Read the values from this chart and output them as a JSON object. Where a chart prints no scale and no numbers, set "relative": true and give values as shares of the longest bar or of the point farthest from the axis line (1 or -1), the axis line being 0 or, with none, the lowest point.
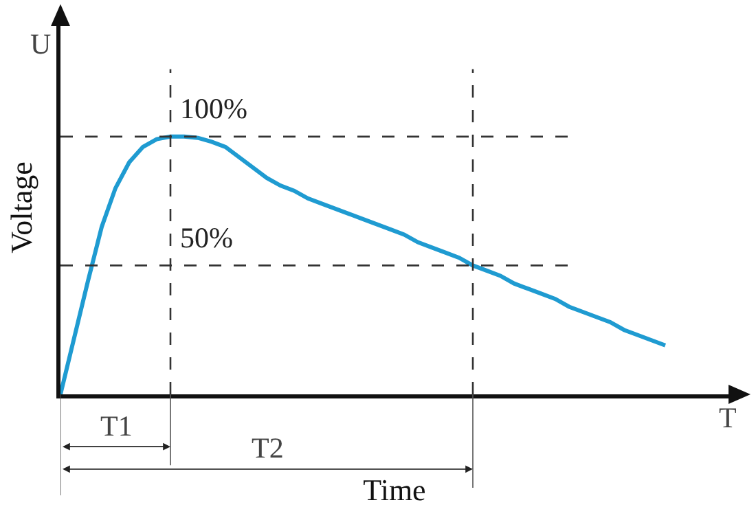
{
  "chart_data": {
    "type": "line",
    "relative": true,
    "xlabel": "Time",
    "ylabel": "Voltage",
    "categories": [
      null,
      null,
      null,
      null,
      null,
      null,
      null,
      null,
      null,
      null,
      null,
      null,
      null,
      null,
      null,
      null,
      null,
      null,
      null,
      null,
      null,
      null,
      null,
      null,
      null,
      null,
      null,
      null,
      null,
      null,
      null,
      null,
      null,
      null,
      null,
      null,
      null,
      null,
      null,
      null,
      null,
      null,
      null,
      null,
      null
    ],
    "series": [
      {
        "color": "#1f9bd1",
        "values": [
          0,
          0.22,
          0.44,
          0.65,
          0.8,
          0.9,
          0.96,
          0.99,
          1,
          1,
          0.995,
          0.98,
          0.96,
          0.92,
          0.88,
          0.84,
          0.81,
          0.79,
          0.76,
          0.74,
          0.72,
          0.7,
          0.68,
          0.66,
          0.64,
          0.62,
          0.59,
          0.57,
          0.55,
          0.53,
          0.5,
          0.48,
          0.46,
          0.43,
          0.41,
          0.39,
          0.37,
          0.34,
          0.32,
          0.3,
          0.28,
          0.25,
          0.23,
          0.21,
          0.19
        ]
      }
    ],
    "ref_lines": [
      {
        "axis": "y",
        "value": 1,
        "label": "100%",
        "color": "#333333",
        "line_style": "dashed"
      },
      {
        "axis": "y",
        "value": 0.5,
        "label": "50%",
        "color": "#333333",
        "line_style": "dashed"
      }
    ],
    "annotations": [
      "U",
      "T",
      "T1",
      "T2"
    ]
  }
}
